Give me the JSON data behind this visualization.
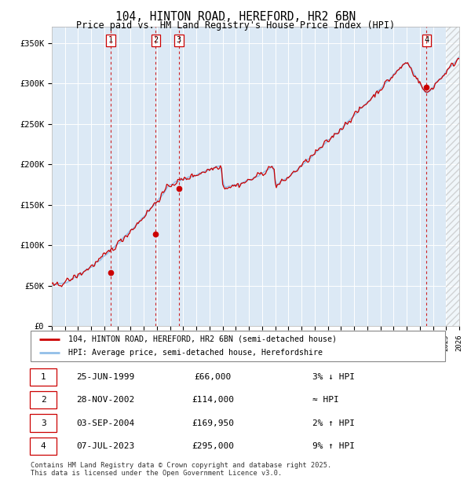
{
  "title": "104, HINTON ROAD, HEREFORD, HR2 6BN",
  "subtitle": "Price paid vs. HM Land Registry's House Price Index (HPI)",
  "ylim": [
    0,
    370000
  ],
  "yticks": [
    0,
    50000,
    100000,
    150000,
    200000,
    250000,
    300000,
    350000
  ],
  "ytick_labels": [
    "£0",
    "£50K",
    "£100K",
    "£150K",
    "£200K",
    "£250K",
    "£300K",
    "£350K"
  ],
  "background_color": "#dce9f5",
  "hpi_line_color": "#92bfe8",
  "price_line_color": "#cc0000",
  "marker_color": "#cc0000",
  "vline_color": "#cc0000",
  "transactions": [
    {
      "label": "1",
      "date_year": 1999.48,
      "price": 66000
    },
    {
      "label": "2",
      "date_year": 2002.91,
      "price": 114000
    },
    {
      "label": "3",
      "date_year": 2004.67,
      "price": 169950
    },
    {
      "label": "4",
      "date_year": 2023.51,
      "price": 295000
    }
  ],
  "legend_entries": [
    "104, HINTON ROAD, HEREFORD, HR2 6BN (semi-detached house)",
    "HPI: Average price, semi-detached house, Herefordshire"
  ],
  "footer": "Contains HM Land Registry data © Crown copyright and database right 2025.\nThis data is licensed under the Open Government Licence v3.0.",
  "table_rows": [
    [
      "1",
      "25-JUN-1999",
      "£66,000",
      "3% ↓ HPI"
    ],
    [
      "2",
      "28-NOV-2002",
      "£114,000",
      "≈ HPI"
    ],
    [
      "3",
      "03-SEP-2004",
      "£169,950",
      "2% ↑ HPI"
    ],
    [
      "4",
      "07-JUL-2023",
      "£295,000",
      "9% ↑ HPI"
    ]
  ]
}
